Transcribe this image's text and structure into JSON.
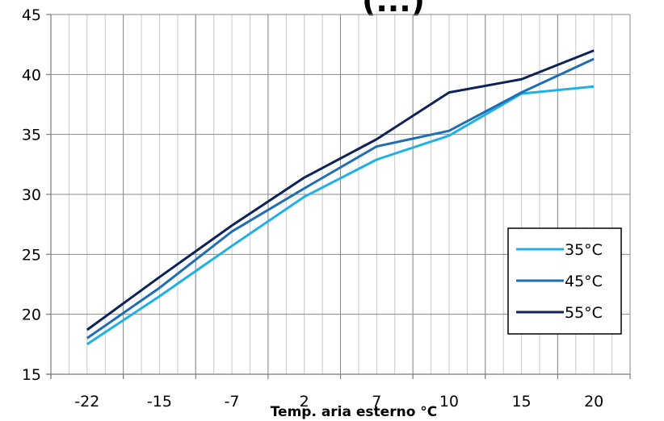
{
  "chart_data": {
    "type": "line",
    "title_fragment": "(...)",
    "xlabel": "Temp. aria esterno °C",
    "ylabel": "",
    "categories": [
      "-22",
      "-15",
      "-7",
      "2",
      "7",
      "10",
      "15",
      "20"
    ],
    "ylim": [
      15,
      45
    ],
    "yticks": [
      "15",
      "20",
      "25",
      "30",
      "35",
      "40",
      "45"
    ],
    "grid": true,
    "legend_position": "bottom-right",
    "series": [
      {
        "name": "35°C",
        "color": "#1fb0e6",
        "values": [
          17.5,
          21.5,
          25.7,
          29.8,
          32.9,
          34.9,
          38.4,
          39.0
        ]
      },
      {
        "name": "45°C",
        "color": "#1f6eb4",
        "values": [
          18.0,
          22.2,
          26.9,
          30.5,
          34.0,
          35.3,
          38.5,
          41.3
        ]
      },
      {
        "name": "55°C",
        "color": "#0d2258",
        "values": [
          18.7,
          23.1,
          27.4,
          31.4,
          34.6,
          38.5,
          39.6,
          42.0
        ]
      }
    ]
  }
}
